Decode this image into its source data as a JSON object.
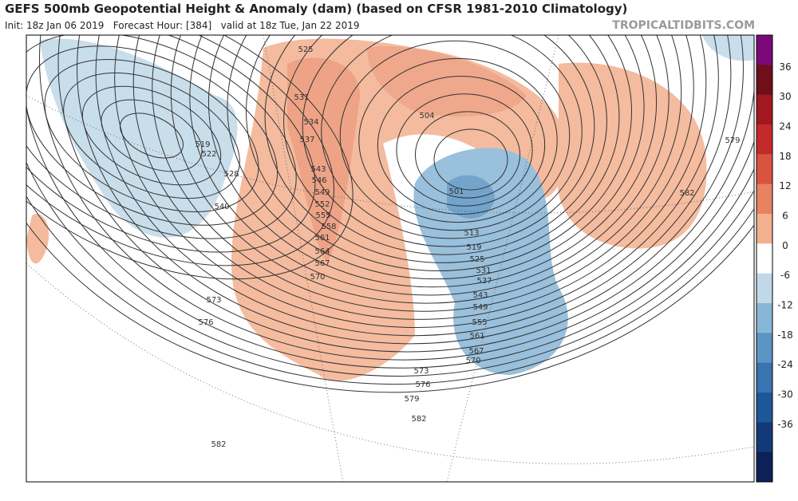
{
  "header": {
    "title": "GEFS 500mb Geopotential Height & Anomaly (dam) (based on CFSR 1981-2010 Climatology)",
    "subtitle": "Init: 18z Jan 06 2019   Forecast Hour: [384]   valid at 18z Tue, Jan 22 2019",
    "brand": "TROPICALTIDBITS.COM"
  },
  "contour_labels": [
    "525",
    "531",
    "534",
    "537",
    "543",
    "546",
    "549",
    "552",
    "555",
    "558",
    "561",
    "564",
    "567",
    "570",
    "573",
    "576",
    "519",
    "522",
    "528",
    "540",
    "501",
    "504",
    "513",
    "519",
    "525",
    "531",
    "537",
    "543",
    "549",
    "555",
    "561",
    "567",
    "570",
    "573",
    "576",
    "579",
    "582",
    "582",
    "579",
    "582"
  ],
  "colorbar": {
    "ticks": [
      36,
      30,
      24,
      18,
      12,
      6,
      0,
      -6,
      -12,
      -18,
      -24,
      -30,
      -36
    ],
    "colors": [
      "#7a0a7a",
      "#6e0f1a",
      "#a3171f",
      "#c42a2a",
      "#d9543e",
      "#e8825f",
      "#f3b08e",
      "#ffffff",
      "#c0d8e8",
      "#88b6d6",
      "#5a95c4",
      "#3774b0",
      "#1d5799",
      "#123a78",
      "#0c2156"
    ]
  }
}
